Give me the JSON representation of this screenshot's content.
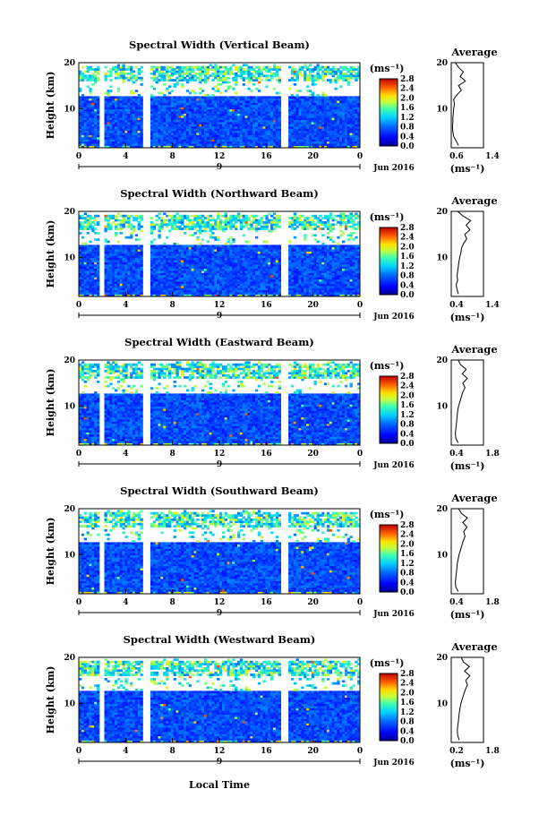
{
  "figure": {
    "x_axis_label": "Local Time",
    "date_label": "Jun 2016",
    "day_label": "9",
    "time_ticks": [
      "0",
      "4",
      "8",
      "12",
      "16",
      "20",
      "0"
    ],
    "height_ticks": [
      "10",
      "20"
    ],
    "height_label": "Height (km)",
    "colorbar_unit": "(ms⁻¹)",
    "colorbar_ticks": [
      "0.0",
      "0.4",
      "0.8",
      "1.2",
      "1.6",
      "2.0",
      "2.4",
      "2.8"
    ],
    "avg_title": "Average",
    "avg_unit": "(ms⁻¹)"
  },
  "chart_data": [
    {
      "type": "heatmap",
      "title": "Spectral Width (Vertical Beam)",
      "xlabel": "Local Time",
      "ylabel": "Height (km)",
      "xlim": [
        0,
        24
      ],
      "ylim": [
        1.5,
        20
      ],
      "clim": [
        0.0,
        2.8
      ],
      "data_gap_hours": [
        2.0,
        5.8,
        17.6
      ],
      "valid_top_km": 13,
      "average_profile": {
        "title": "Average",
        "xlabel": "(ms⁻¹)",
        "xlim": [
          0.6,
          1.4
        ],
        "xticks": [
          "0.6",
          "1.4"
        ],
        "height_km": [
          2,
          3,
          4,
          5,
          6,
          7,
          8,
          9,
          10,
          11,
          12,
          13,
          14,
          15,
          16,
          17,
          18,
          19,
          20
        ],
        "values": [
          0.78,
          0.72,
          0.66,
          0.64,
          0.63,
          0.64,
          0.64,
          0.65,
          0.66,
          0.68,
          0.66,
          0.74,
          0.85,
          0.78,
          0.95,
          0.82,
          0.9,
          0.78,
          0.7
        ]
      }
    },
    {
      "type": "heatmap",
      "title": "Spectral Width (Northward Beam)",
      "xlabel": "Local Time",
      "ylabel": "Height (km)",
      "xlim": [
        0,
        24
      ],
      "ylim": [
        1.5,
        20
      ],
      "clim": [
        0.0,
        2.8
      ],
      "data_gap_hours": [
        2.0,
        5.8,
        17.6
      ],
      "valid_top_km": 13,
      "average_profile": {
        "title": "Average",
        "xlabel": "(ms⁻¹)",
        "xlim": [
          0.4,
          1.4
        ],
        "xticks": [
          "0.4",
          "1.4"
        ],
        "height_km": [
          2,
          3,
          4,
          5,
          6,
          7,
          8,
          9,
          10,
          11,
          12,
          13,
          14,
          15,
          16,
          17,
          18,
          19,
          20
        ],
        "values": [
          0.62,
          0.58,
          0.55,
          0.6,
          0.58,
          0.6,
          0.62,
          0.64,
          0.66,
          0.7,
          0.72,
          0.78,
          0.88,
          0.82,
          0.98,
          0.86,
          1.0,
          0.76,
          0.6
        ]
      }
    },
    {
      "type": "heatmap",
      "title": "Spectral Width (Eastward Beam)",
      "xlabel": "Local Time",
      "ylabel": "Height (km)",
      "xlim": [
        0,
        24
      ],
      "ylim": [
        1.5,
        20
      ],
      "clim": [
        0.0,
        2.8
      ],
      "data_gap_hours": [
        2.0,
        5.8,
        17.6
      ],
      "valid_top_km": 13,
      "average_profile": {
        "title": "Average",
        "xlabel": "(ms⁻¹)",
        "xlim": [
          0.4,
          1.8
        ],
        "xticks": [
          "0.4",
          "1.8"
        ],
        "height_km": [
          2,
          3,
          4,
          5,
          6,
          7,
          8,
          9,
          10,
          11,
          12,
          13,
          14,
          15,
          16,
          17,
          18,
          19,
          20
        ],
        "values": [
          0.7,
          0.6,
          0.58,
          0.6,
          0.62,
          0.64,
          0.66,
          0.68,
          0.72,
          0.78,
          0.84,
          0.9,
          1.0,
          0.9,
          1.1,
          0.88,
          1.05,
          0.8,
          0.7
        ]
      }
    },
    {
      "type": "heatmap",
      "title": "Spectral Width (Southward Beam)",
      "xlabel": "Local Time",
      "ylabel": "Height (km)",
      "xlim": [
        0,
        24
      ],
      "ylim": [
        1.5,
        20
      ],
      "clim": [
        0.0,
        2.8
      ],
      "data_gap_hours": [
        2.0,
        5.8,
        17.6
      ],
      "valid_top_km": 13,
      "average_profile": {
        "title": "Average",
        "xlabel": "(ms⁻¹)",
        "xlim": [
          0.4,
          1.8
        ],
        "xticks": [
          "0.4",
          "1.8"
        ],
        "height_km": [
          2,
          3,
          4,
          5,
          6,
          7,
          8,
          9,
          10,
          11,
          12,
          13,
          14,
          15,
          16,
          17,
          18,
          19,
          20
        ],
        "values": [
          0.7,
          0.6,
          0.58,
          0.6,
          0.62,
          0.64,
          0.66,
          0.7,
          0.74,
          0.8,
          0.86,
          0.92,
          1.0,
          0.94,
          1.08,
          0.9,
          1.1,
          0.84,
          0.72
        ]
      }
    },
    {
      "type": "heatmap",
      "title": "Spectral Width (Westward Beam)",
      "xlabel": "Local Time",
      "ylabel": "Height (km)",
      "xlim": [
        0,
        24
      ],
      "ylim": [
        1.5,
        20
      ],
      "clim": [
        0.0,
        2.8
      ],
      "data_gap_hours": [
        2.0,
        5.8,
        17.6
      ],
      "valid_top_km": 13,
      "average_profile": {
        "title": "Average",
        "xlabel": "(ms⁻¹)",
        "xlim": [
          0.2,
          1.8
        ],
        "xticks": [
          "0.2",
          "1.8"
        ],
        "height_km": [
          2,
          3,
          4,
          5,
          6,
          7,
          8,
          9,
          10,
          11,
          12,
          13,
          14,
          15,
          16,
          17,
          18,
          19,
          20
        ],
        "values": [
          0.6,
          0.52,
          0.5,
          0.52,
          0.55,
          0.58,
          0.6,
          0.64,
          0.68,
          0.75,
          0.82,
          0.9,
          1.0,
          0.92,
          1.12,
          0.86,
          1.1,
          0.8,
          0.7
        ]
      }
    }
  ]
}
